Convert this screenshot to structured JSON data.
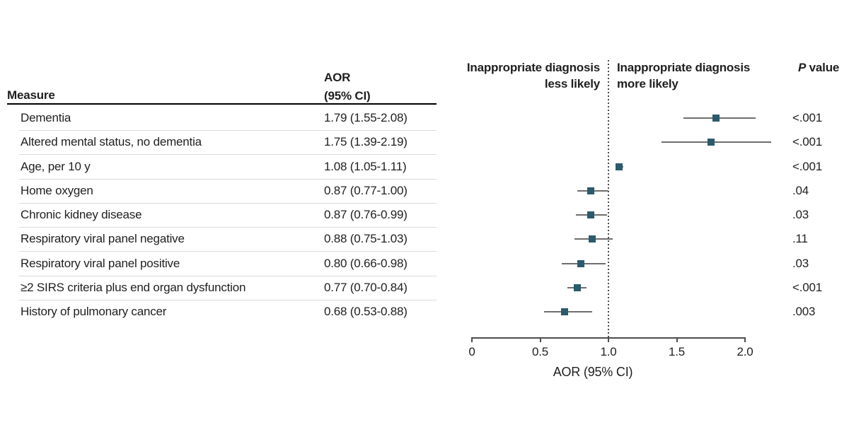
{
  "table_header": {
    "measure": "Measure",
    "aor_line1": "AOR",
    "aor_line2": "(95% CI)"
  },
  "plot_labels": {
    "left_line1": "Inappropriate diagnosis",
    "left_line2": "less likely",
    "right_line1": "Inappropriate diagnosis",
    "right_line2": "more likely",
    "p_italic": "P",
    "p_rest": " value"
  },
  "colors": {
    "marker": "#2b5a6c",
    "ci_line": "#6e6e6e",
    "axis": "#4d4d4d",
    "separator": "#d9d9d9",
    "header_rule": "#000000"
  },
  "chart_data": {
    "type": "forest",
    "x_axis": {
      "title": "AOR (95% CI)",
      "range": [
        0,
        2.0
      ],
      "ticks": [
        {
          "v": 0,
          "label": "0"
        },
        {
          "v": 0.5,
          "label": "0.5"
        },
        {
          "v": 1.0,
          "label": "1.0"
        },
        {
          "v": 1.5,
          "label": "1.5"
        },
        {
          "v": 2.0,
          "label": "2.0"
        }
      ]
    },
    "reference_line": 1.0,
    "rows": [
      {
        "measure": "Dementia",
        "aor": 1.79,
        "ci_low": 1.55,
        "ci_high": 2.08,
        "aor_text": "1.79 (1.55-2.08)",
        "p": "<.001"
      },
      {
        "measure": "Altered mental status, no dementia",
        "aor": 1.75,
        "ci_low": 1.39,
        "ci_high": 2.19,
        "aor_text": "1.75 (1.39-2.19)",
        "p": "<.001"
      },
      {
        "measure": "Age, per 10 y",
        "aor": 1.08,
        "ci_low": 1.05,
        "ci_high": 1.11,
        "aor_text": "1.08 (1.05-1.11)",
        "p": "<.001"
      },
      {
        "measure": "Home oxygen",
        "aor": 0.87,
        "ci_low": 0.77,
        "ci_high": 1.0,
        "aor_text": "0.87 (0.77-1.00)",
        "p": ".04"
      },
      {
        "measure": "Chronic kidney disease",
        "aor": 0.87,
        "ci_low": 0.76,
        "ci_high": 0.99,
        "aor_text": "0.87 (0.76-0.99)",
        "p": ".03"
      },
      {
        "measure": "Respiratory viral panel negative",
        "aor": 0.88,
        "ci_low": 0.75,
        "ci_high": 1.03,
        "aor_text": "0.88 (0.75-1.03)",
        "p": ".11"
      },
      {
        "measure": "Respiratory viral panel positive",
        "aor": 0.8,
        "ci_low": 0.66,
        "ci_high": 0.98,
        "aor_text": "0.80 (0.66-0.98)",
        "p": ".03"
      },
      {
        "measure": "≥2 SIRS criteria plus end organ dysfunction",
        "aor": 0.77,
        "ci_low": 0.7,
        "ci_high": 0.84,
        "aor_text": "0.77 (0.70-0.84)",
        "p": "<.001"
      },
      {
        "measure": "History of pulmonary cancer",
        "aor": 0.68,
        "ci_low": 0.53,
        "ci_high": 0.88,
        "aor_text": "0.68 (0.53-0.88)",
        "p": ".003"
      }
    ]
  }
}
